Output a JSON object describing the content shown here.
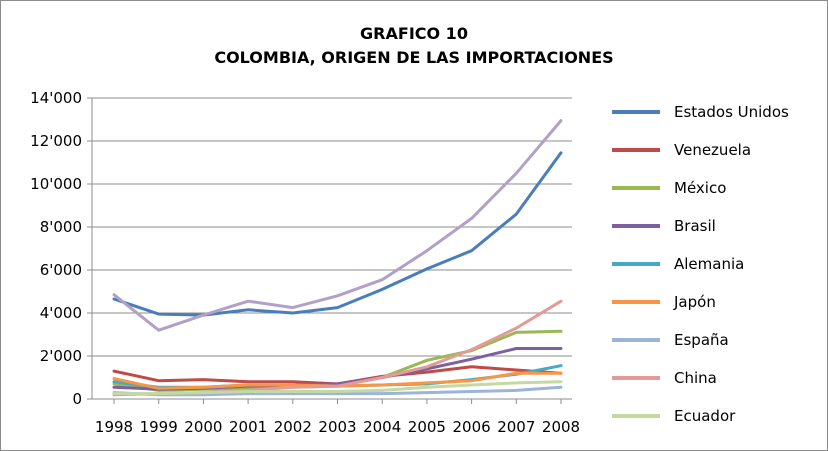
{
  "chart_data": {
    "type": "line",
    "title_line1": "GRAFICO 10",
    "title_line2": "COLOMBIA, ORIGEN DE LAS IMPORTACIONES",
    "xlabel": "",
    "ylabel": "",
    "ylim": [
      0,
      14000
    ],
    "yticks": [
      0,
      2000,
      4000,
      6000,
      8000,
      10000,
      12000,
      14000
    ],
    "ytick_labels": [
      "0",
      "2'000",
      "4'000",
      "6'000",
      "8'000",
      "10'000",
      "12'000",
      "14'000"
    ],
    "categories": [
      "1998",
      "1999",
      "2000",
      "2001",
      "2002",
      "2003",
      "2004",
      "2005",
      "2006",
      "2007",
      "2008"
    ],
    "grid": "horizontal",
    "legend_position": "right",
    "series": [
      {
        "name": "Estados Unidos",
        "color": "#4a7ebb",
        "values": [
          4650,
          3950,
          3900,
          4150,
          4000,
          4250,
          5100,
          6050,
          6900,
          8600,
          11450
        ]
      },
      {
        "name": "Venezuela",
        "color": "#be4b48",
        "values": [
          1300,
          850,
          900,
          800,
          800,
          700,
          1050,
          1250,
          1500,
          1350,
          1200
        ]
      },
      {
        "name": "México",
        "color": "#98b954",
        "values": [
          700,
          400,
          450,
          500,
          550,
          600,
          1000,
          1800,
          2250,
          3100,
          3150
        ]
      },
      {
        "name": "Brasil",
        "color": "#7d60a0",
        "values": [
          550,
          450,
          500,
          600,
          650,
          700,
          1000,
          1400,
          1850,
          2350,
          2350
        ]
      },
      {
        "name": "Alemania",
        "color": "#46aac5",
        "values": [
          800,
          550,
          550,
          650,
          650,
          600,
          650,
          700,
          900,
          1150,
          1550
        ]
      },
      {
        "name": "Japón",
        "color": "#f79646",
        "values": [
          950,
          500,
          550,
          650,
          650,
          600,
          650,
          750,
          850,
          1200,
          1200
        ]
      },
      {
        "name": "España",
        "color": "#9ab4dc",
        "values": [
          300,
          200,
          200,
          250,
          250,
          250,
          250,
          300,
          350,
          400,
          550
        ]
      },
      {
        "name": "China",
        "color": "#e49a98",
        "values": [
          200,
          250,
          300,
          400,
          550,
          600,
          1000,
          1500,
          2300,
          3300,
          4550
        ]
      },
      {
        "name": "Ecuador",
        "color": "#c4d8a2",
        "values": [
          250,
          250,
          300,
          350,
          350,
          350,
          400,
          550,
          650,
          750,
          800
        ]
      },
      {
        "name": "",
        "color": "#b2a1c7",
        "values": [
          4850,
          3200,
          3900,
          4550,
          4250,
          4800,
          5550,
          6900,
          8400,
          10500,
          12950
        ]
      }
    ]
  }
}
